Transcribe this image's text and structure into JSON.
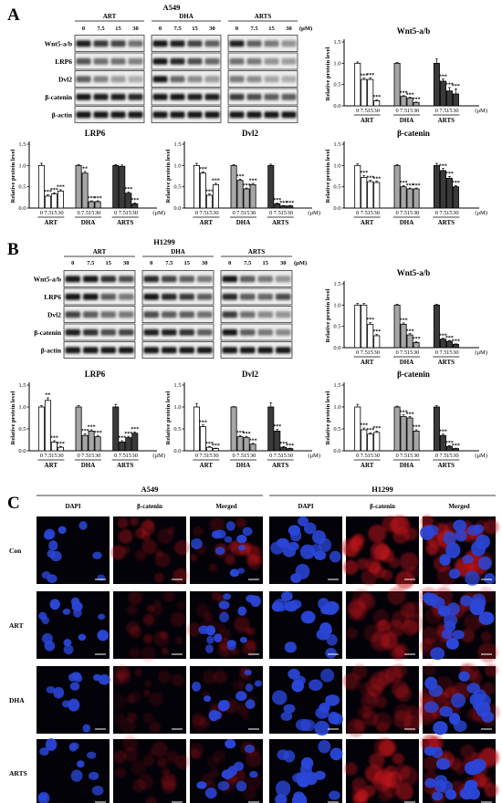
{
  "panel_a": {
    "letter": "A",
    "cell_line": "A549",
    "blot": {
      "groups": [
        "ART",
        "DHA",
        "ARTS"
      ],
      "doses": [
        "0",
        "7.5",
        "15",
        "30"
      ],
      "unit": "(μM)",
      "rows": [
        "Wnt5-a/b",
        "LRP6",
        "Dvl2",
        "β-catenin",
        "β-actin"
      ]
    }
  },
  "panel_b": {
    "letter": "B",
    "cell_line": "H1299",
    "blot": {
      "groups": [
        "ART",
        "DHA",
        "ARTS"
      ],
      "doses": [
        "0",
        "7.5",
        "15",
        "30"
      ],
      "unit": "(μM)",
      "rows": [
        "Wnt5-a/b",
        "LRP6",
        "Dvl2",
        "β-catenin",
        "β-actin"
      ]
    }
  },
  "panel_c": {
    "letter": "C",
    "cell_lines": [
      "A549",
      "H1299"
    ],
    "channels": [
      "DAPI",
      "β-catenin",
      "Merged"
    ],
    "treatments": [
      "Con",
      "ART",
      "DHA",
      "ARTS"
    ]
  },
  "chart_data": [
    {
      "id": "a-wnt",
      "type": "bar",
      "title": "Wnt5-a/b",
      "ylabel": "Relative protein level",
      "ylim": [
        0,
        1.5
      ],
      "yticks": [
        "0.0",
        "0.5",
        "1.0",
        "1.5"
      ],
      "groups": [
        "ART",
        "DHA",
        "ARTS"
      ],
      "doses": [
        "0",
        "7.5",
        "15",
        "30"
      ],
      "unit": "(μM)",
      "values": [
        [
          1.0,
          0.62,
          0.62,
          0.12
        ],
        [
          1.0,
          0.22,
          0.18,
          0.08
        ],
        [
          1.0,
          0.58,
          0.35,
          0.28
        ]
      ],
      "errors": [
        [
          0.03,
          0.03,
          0.04,
          0.02
        ],
        [
          0.02,
          0.02,
          0.02,
          0.01
        ],
        [
          0.1,
          0.05,
          0.08,
          0.12
        ]
      ],
      "stars": [
        [
          "",
          "***",
          "***",
          "***"
        ],
        [
          "",
          "***",
          "***",
          "***"
        ],
        [
          "",
          "***",
          "***",
          "***"
        ]
      ]
    },
    {
      "id": "a-lrp6",
      "type": "bar",
      "title": "LRP6",
      "ylabel": "Relative protein level",
      "ylim": [
        0,
        1.5
      ],
      "yticks": [
        "0.0",
        "0.5",
        "1.0",
        "1.5"
      ],
      "groups": [
        "ART",
        "DHA",
        "ARTS"
      ],
      "doses": [
        "0",
        "7.5",
        "15",
        "30"
      ],
      "unit": "(μM)",
      "values": [
        [
          1.0,
          0.28,
          0.33,
          0.4
        ],
        [
          1.0,
          0.82,
          0.15,
          0.15
        ],
        [
          1.0,
          0.98,
          0.35,
          0.1
        ]
      ],
      "errors": [
        [
          0.05,
          0.03,
          0.03,
          0.03
        ],
        [
          0.02,
          0.04,
          0.02,
          0.02
        ],
        [
          0.02,
          0.03,
          0.03,
          0.02
        ]
      ],
      "stars": [
        [
          "",
          "***",
          "***",
          "***"
        ],
        [
          "",
          "**",
          "***",
          "***"
        ],
        [
          "",
          "",
          "***",
          "***"
        ]
      ]
    },
    {
      "id": "a-dvl2",
      "type": "bar",
      "title": "Dvl2",
      "ylabel": "Relative protein level",
      "ylim": [
        0,
        1.5
      ],
      "yticks": [
        "0.0",
        "0.5",
        "1.0",
        "1.5"
      ],
      "groups": [
        "ART",
        "DHA",
        "ARTS"
      ],
      "doses": [
        "0",
        "7.5",
        "15",
        "30"
      ],
      "unit": "(μM)",
      "values": [
        [
          1.0,
          0.82,
          0.3,
          0.55
        ],
        [
          1.0,
          0.65,
          0.45,
          0.55
        ],
        [
          1.0,
          0.1,
          0.05,
          0.05
        ]
      ],
      "errors": [
        [
          0.05,
          0.03,
          0.03,
          0.03
        ],
        [
          0.02,
          0.03,
          0.02,
          0.03
        ],
        [
          0.03,
          0.02,
          0.01,
          0.01
        ]
      ],
      "stars": [
        [
          "",
          "***",
          "***",
          "***"
        ],
        [
          "",
          "***",
          "***",
          "***"
        ],
        [
          "",
          "***",
          "***",
          "***"
        ]
      ]
    },
    {
      "id": "a-bcat",
      "type": "bar",
      "title": "β-catenin",
      "ylabel": "Relative protein level",
      "ylim": [
        0,
        1.5
      ],
      "yticks": [
        "0.0",
        "0.5",
        "1.0",
        "1.5"
      ],
      "groups": [
        "ART",
        "DHA",
        "ARTS"
      ],
      "doses": [
        "0",
        "7.5",
        "15",
        "30"
      ],
      "unit": "(μM)",
      "values": [
        [
          1.0,
          0.72,
          0.62,
          0.6
        ],
        [
          1.0,
          0.5,
          0.45,
          0.45
        ],
        [
          1.0,
          0.88,
          0.7,
          0.5
        ]
      ],
      "errors": [
        [
          0.04,
          0.04,
          0.03,
          0.03
        ],
        [
          0.02,
          0.03,
          0.02,
          0.02
        ],
        [
          0.05,
          0.05,
          0.04,
          0.03
        ]
      ],
      "stars": [
        [
          "",
          "***",
          "***",
          "***"
        ],
        [
          "",
          "***",
          "***",
          "***"
        ],
        [
          "",
          "***",
          "***",
          "***"
        ]
      ]
    },
    {
      "id": "b-wnt",
      "type": "bar",
      "title": "Wnt5-a/b",
      "ylabel": "Relative protein level",
      "ylim": [
        0,
        1.5
      ],
      "yticks": [
        "0.0",
        "0.5",
        "1.0",
        "1.5"
      ],
      "groups": [
        "ART",
        "DHA",
        "ARTS"
      ],
      "doses": [
        "0",
        "7.5",
        "15",
        "30"
      ],
      "unit": "(μM)",
      "values": [
        [
          1.0,
          1.0,
          0.55,
          0.28
        ],
        [
          1.0,
          0.55,
          0.3,
          0.12
        ],
        [
          1.0,
          0.2,
          0.15,
          0.08
        ]
      ],
      "errors": [
        [
          0.04,
          0.04,
          0.04,
          0.03
        ],
        [
          0.02,
          0.03,
          0.03,
          0.02
        ],
        [
          0.02,
          0.02,
          0.02,
          0.01
        ]
      ],
      "stars": [
        [
          "",
          "",
          "***",
          "***"
        ],
        [
          "",
          "***",
          "***",
          "***"
        ],
        [
          "",
          "***",
          "***",
          "***"
        ]
      ]
    },
    {
      "id": "b-lrp6",
      "type": "bar",
      "title": "LRP6",
      "ylabel": "Relative protein level",
      "ylim": [
        0,
        1.5
      ],
      "yticks": [
        "0.0",
        "0.5",
        "1.0",
        "1.5"
      ],
      "groups": [
        "ART",
        "DHA",
        "ARTS"
      ],
      "doses": [
        "0",
        "7.5",
        "15",
        "30"
      ],
      "unit": "(μM)",
      "values": [
        [
          1.0,
          1.15,
          0.2,
          0.08
        ],
        [
          1.0,
          0.35,
          0.45,
          0.32
        ],
        [
          1.0,
          0.2,
          0.3,
          0.4
        ]
      ],
      "errors": [
        [
          0.03,
          0.06,
          0.03,
          0.02
        ],
        [
          0.03,
          0.04,
          0.03,
          0.03
        ],
        [
          0.06,
          0.03,
          0.03,
          0.03
        ]
      ],
      "stars": [
        [
          "",
          "**",
          "***",
          "***"
        ],
        [
          "",
          "***",
          "***",
          "***"
        ],
        [
          "",
          "***",
          "***",
          "***"
        ]
      ]
    },
    {
      "id": "b-dvl2",
      "type": "bar",
      "title": "Dvl2",
      "ylabel": "Relative protein level",
      "ylim": [
        0,
        1.5
      ],
      "yticks": [
        "0.0",
        "0.5",
        "1.0",
        "1.5"
      ],
      "groups": [
        "ART",
        "DHA",
        "ARTS"
      ],
      "doses": [
        "0",
        "7.5",
        "15",
        "30"
      ],
      "unit": "(μM)",
      "values": [
        [
          1.0,
          0.55,
          0.08,
          0.05
        ],
        [
          1.0,
          0.32,
          0.3,
          0.15
        ],
        [
          1.0,
          0.45,
          0.08,
          0.05
        ]
      ],
      "errors": [
        [
          0.08,
          0.04,
          0.02,
          0.01
        ],
        [
          0.01,
          0.03,
          0.03,
          0.02
        ],
        [
          0.1,
          0.04,
          0.02,
          0.01
        ]
      ],
      "stars": [
        [
          "",
          "***",
          "***",
          "***"
        ],
        [
          "",
          "***",
          "***",
          "***"
        ],
        [
          "",
          "***",
          "***",
          "***"
        ]
      ]
    },
    {
      "id": "b-bcat",
      "type": "bar",
      "title": "β-catenin",
      "ylabel": "Relative protein level",
      "ylim": [
        0,
        1.5
      ],
      "yticks": [
        "0.0",
        "0.5",
        "1.0",
        "1.5"
      ],
      "groups": [
        "ART",
        "DHA",
        "ARTS"
      ],
      "doses": [
        "0",
        "7.5",
        "15",
        "30"
      ],
      "unit": "(μM)",
      "values": [
        [
          1.0,
          0.48,
          0.38,
          0.42
        ],
        [
          1.0,
          0.78,
          0.75,
          0.45
        ],
        [
          1.0,
          0.35,
          0.1,
          0.05
        ]
      ],
      "errors": [
        [
          0.06,
          0.04,
          0.03,
          0.03
        ],
        [
          0.02,
          0.04,
          0.03,
          0.03
        ],
        [
          0.03,
          0.03,
          0.02,
          0.01
        ]
      ],
      "stars": [
        [
          "",
          "***",
          "***",
          "***"
        ],
        [
          "",
          "***",
          "***",
          "***"
        ],
        [
          "",
          "***",
          "***",
          "***"
        ]
      ]
    }
  ],
  "colors": {
    "art": "#ffffff",
    "dha": "#a6a6a6",
    "arts": "#3a3a3a",
    "dapi": "#2a46d8",
    "catenin": "#c2161e",
    "background": "#ffffff"
  }
}
